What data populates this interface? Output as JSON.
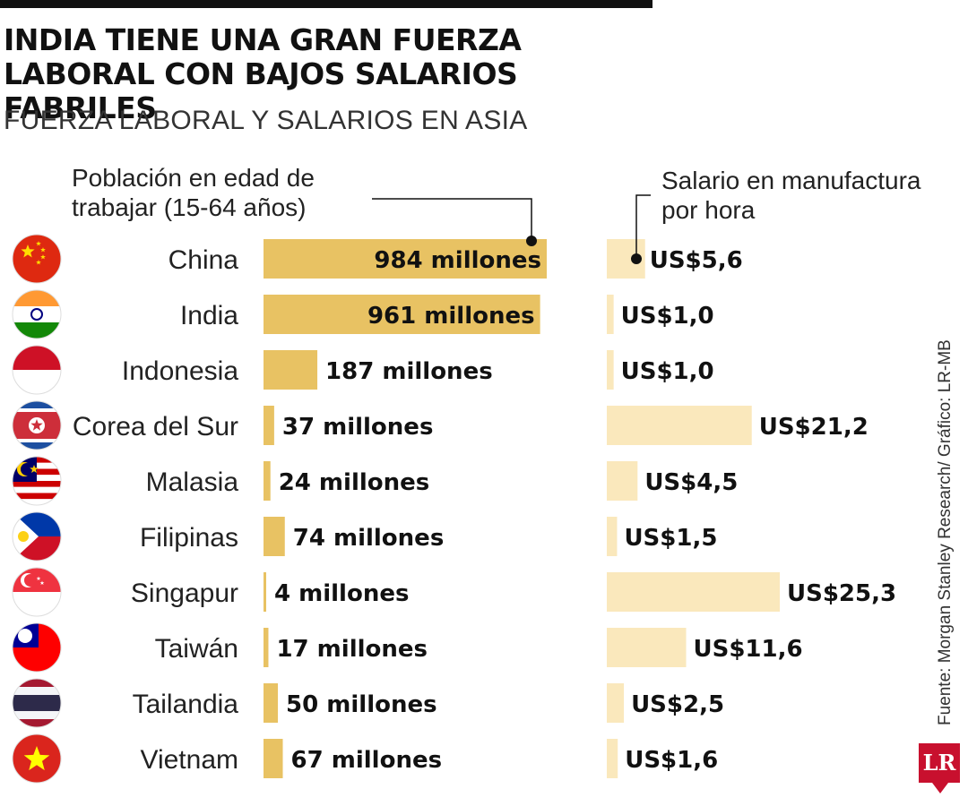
{
  "title": "INDIA TIENE UNA GRAN FUERZA LABORAL CON BAJOS SALARIOS FABRILES",
  "subtitle": "FUERZA LABORAL Y SALARIOS EN ASIA",
  "source": "Fuente: Morgan Stanley Research/ Gráfico: LR-MB",
  "logo_text": "LR",
  "colors": {
    "population_bar": "#e8c263",
    "wage_bar": "#fae8bc",
    "leader": "#111111",
    "logo": "#c8102e"
  },
  "chart_data": [
    {
      "type": "bar",
      "orientation": "horizontal",
      "title": "Población en edad de trabajar (15-64 años)",
      "categories": [
        "China",
        "India",
        "Indonesia",
        "Corea del Sur",
        "Malasia",
        "Filipinas",
        "Singapur",
        "Taiwán",
        "Tailandia",
        "Vietnam"
      ],
      "values": [
        984,
        961,
        187,
        37,
        24,
        74,
        4,
        17,
        50,
        67
      ],
      "value_labels": [
        "984 millones",
        "961 millones",
        "187 millones",
        "37 millones",
        "24 millones",
        "74 millones",
        "4 millones",
        "17 millones",
        "50 millones",
        "67 millones"
      ],
      "unit": "millones",
      "xlim": [
        0,
        984
      ],
      "grid": false
    },
    {
      "type": "bar",
      "orientation": "horizontal",
      "title": "Salario en manufactura por hora",
      "categories": [
        "China",
        "India",
        "Indonesia",
        "Corea del Sur",
        "Malasia",
        "Filipinas",
        "Singapur",
        "Taiwán",
        "Tailandia",
        "Vietnam"
      ],
      "values": [
        5.6,
        1.0,
        1.0,
        21.2,
        4.5,
        1.5,
        25.3,
        11.6,
        2.5,
        1.6
      ],
      "value_labels": [
        "US$5,6",
        "US$1,0",
        "US$1,0",
        "US$21,2",
        "US$4,5",
        "US$1,5",
        "US$25,3",
        "US$11,6",
        "US$2,5",
        "US$1,6"
      ],
      "unit": "US$",
      "xlim": [
        0,
        25.3
      ],
      "grid": false
    }
  ],
  "flags": [
    {
      "country": "China",
      "icon": "china-flag-icon"
    },
    {
      "country": "India",
      "icon": "india-flag-icon"
    },
    {
      "country": "Indonesia",
      "icon": "indonesia-flag-icon"
    },
    {
      "country": "Corea del Sur",
      "icon": "south-korea-flag-icon"
    },
    {
      "country": "Malasia",
      "icon": "malaysia-flag-icon"
    },
    {
      "country": "Filipinas",
      "icon": "philippines-flag-icon"
    },
    {
      "country": "Singapur",
      "icon": "singapore-flag-icon"
    },
    {
      "country": "Taiwán",
      "icon": "taiwan-flag-icon"
    },
    {
      "country": "Tailandia",
      "icon": "thailand-flag-icon"
    },
    {
      "country": "Vietnam",
      "icon": "vietnam-flag-icon"
    }
  ]
}
